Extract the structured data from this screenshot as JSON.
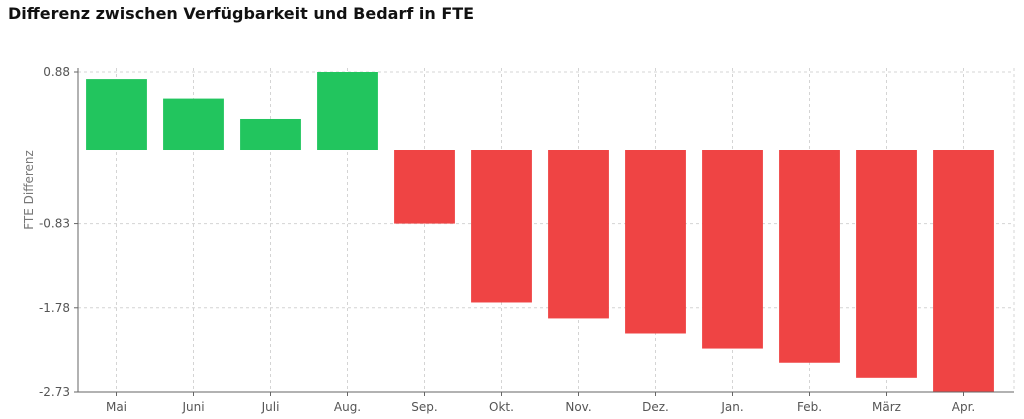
{
  "chart_data": {
    "type": "bar",
    "title": "Differenz zwischen Verfügbarkeit und Bedarf in FTE",
    "xlabel": "",
    "ylabel": "FTE Differenz",
    "categories": [
      "Mai",
      "Juni",
      "Juli",
      "Aug.",
      "Sep.",
      "Okt.",
      "Nov.",
      "Dez.",
      "Jan.",
      "Feb.",
      "März",
      "Apr."
    ],
    "values": [
      0.8,
      0.58,
      0.35,
      0.88,
      -0.83,
      -1.72,
      -1.9,
      -2.07,
      -2.24,
      -2.4,
      -2.57,
      -2.73
    ],
    "yticks": [
      0.88,
      -0.83,
      -1.78,
      -2.73
    ],
    "ytick_labels": [
      "0.88",
      "-0.83",
      "-1.78",
      "-2.73"
    ],
    "ylim": [
      -2.73,
      0.88
    ],
    "grid": true,
    "colors": {
      "positive": "#22c55e",
      "negative": "#ef4444"
    }
  }
}
